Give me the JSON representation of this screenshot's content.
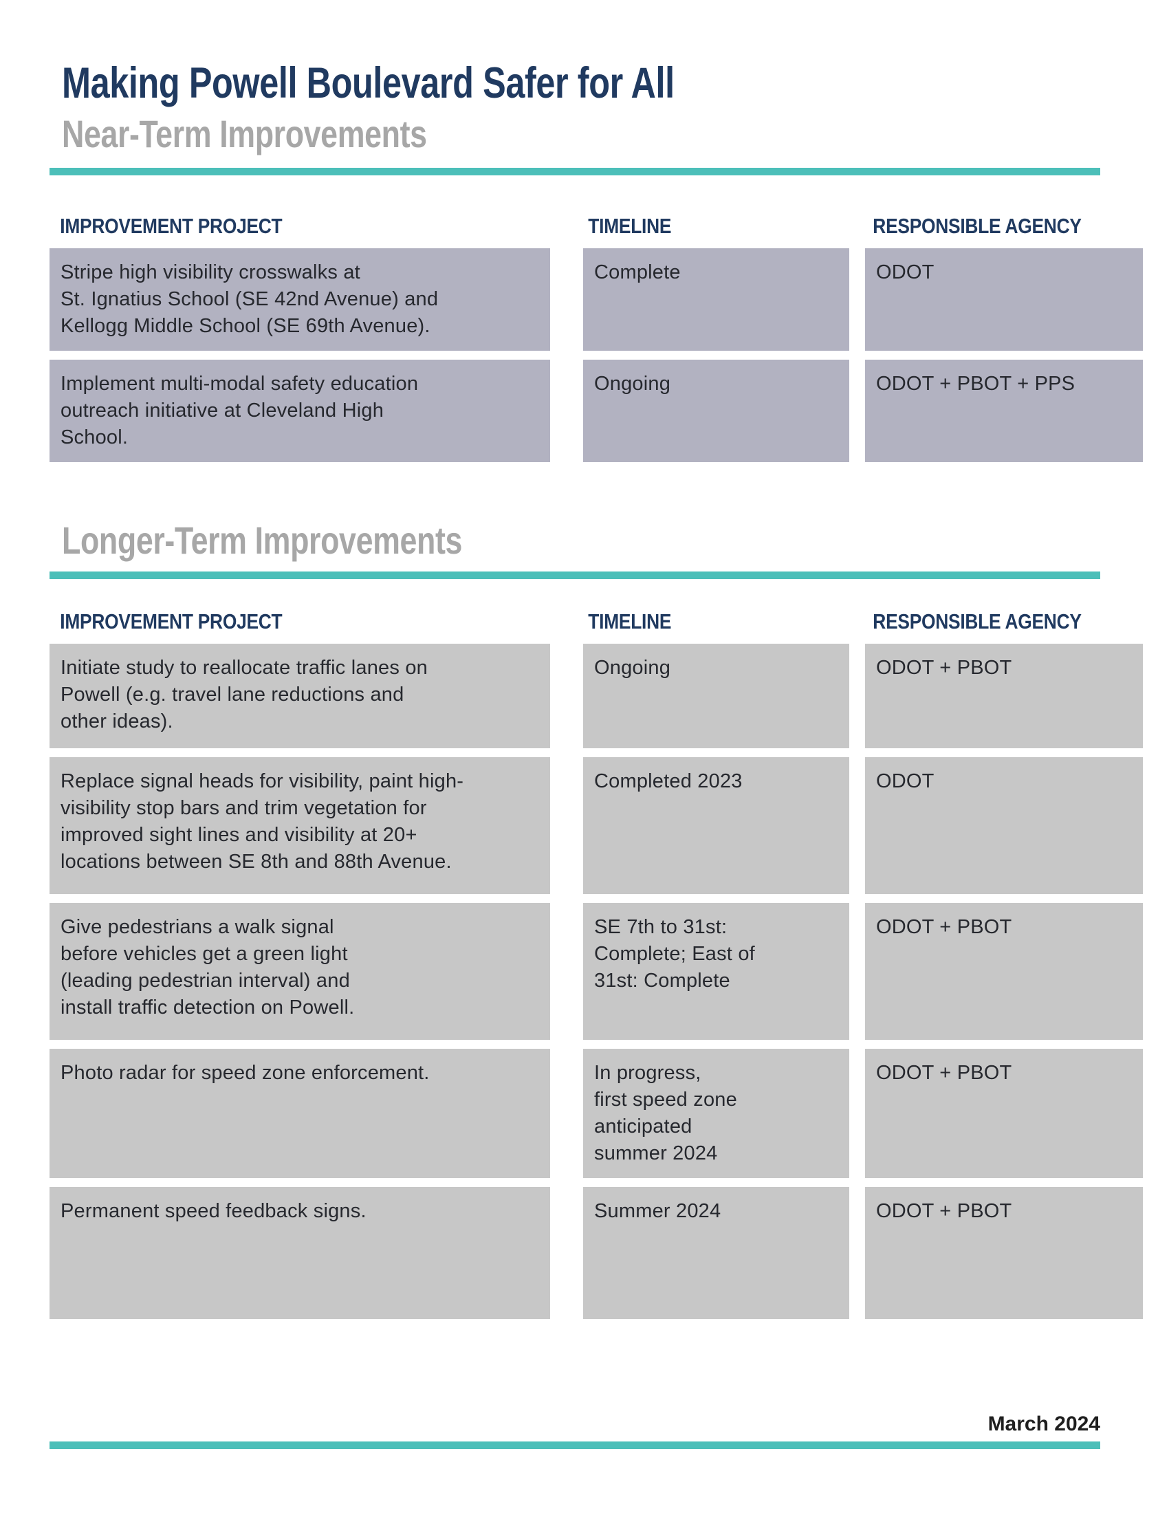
{
  "title": "Making Powell Boulevard Safer for All",
  "footer_date": "March 2024",
  "colors": {
    "navy": "#203a60",
    "gray_heading": "#a7a7a7",
    "teal": "#4cbfb9",
    "near_term_cell_bg": "#b2b2c1",
    "longer_term_cell_bg": "#c7c7c7",
    "body_text": "#26282e"
  },
  "columns": [
    "IMPROVEMENT PROJECT",
    "TIMELINE",
    "RESPONSIBLE AGENCY"
  ],
  "sections": [
    {
      "heading": "Near-Term Improvements",
      "rows": [
        {
          "project": "Stripe high visibility crosswalks at\nSt. Ignatius School (SE 42nd Avenue) and\nKellogg Middle School (SE 69th Avenue).",
          "timeline": "Complete",
          "agency": "ODOT"
        },
        {
          "project": "Implement multi-modal safety education\noutreach initiative at Cleveland High\nSchool.",
          "timeline": "Ongoing",
          "agency": "ODOT + PBOT + PPS"
        }
      ]
    },
    {
      "heading": "Longer-Term Improvements",
      "rows": [
        {
          "project": "Initiate study to reallocate traffic lanes on\nPowell (e.g. travel lane reductions and\nother ideas).",
          "timeline": "Ongoing",
          "agency": "ODOT + PBOT"
        },
        {
          "project": "Replace signal heads for visibility, paint high-\nvisibility stop bars and trim vegetation for\nimproved sight lines and visibility at 20+\nlocations between SE 8th and 88th Avenue.",
          "timeline": "Completed 2023",
          "agency": "ODOT"
        },
        {
          "project": "Give pedestrians a walk signal\nbefore vehicles get a green light\n(leading pedestrian interval) and\ninstall traffic detection on Powell.",
          "timeline": "SE 7th to 31st:\nComplete; East of\n31st: Complete",
          "agency": "ODOT + PBOT"
        },
        {
          "project": "Photo radar for speed zone enforcement.",
          "timeline": "In progress,\nfirst speed zone\nanticipated\nsummer 2024",
          "agency": "ODOT + PBOT"
        },
        {
          "project": "Permanent speed feedback signs.",
          "timeline": "Summer 2024",
          "agency": "ODOT + PBOT"
        }
      ]
    }
  ]
}
